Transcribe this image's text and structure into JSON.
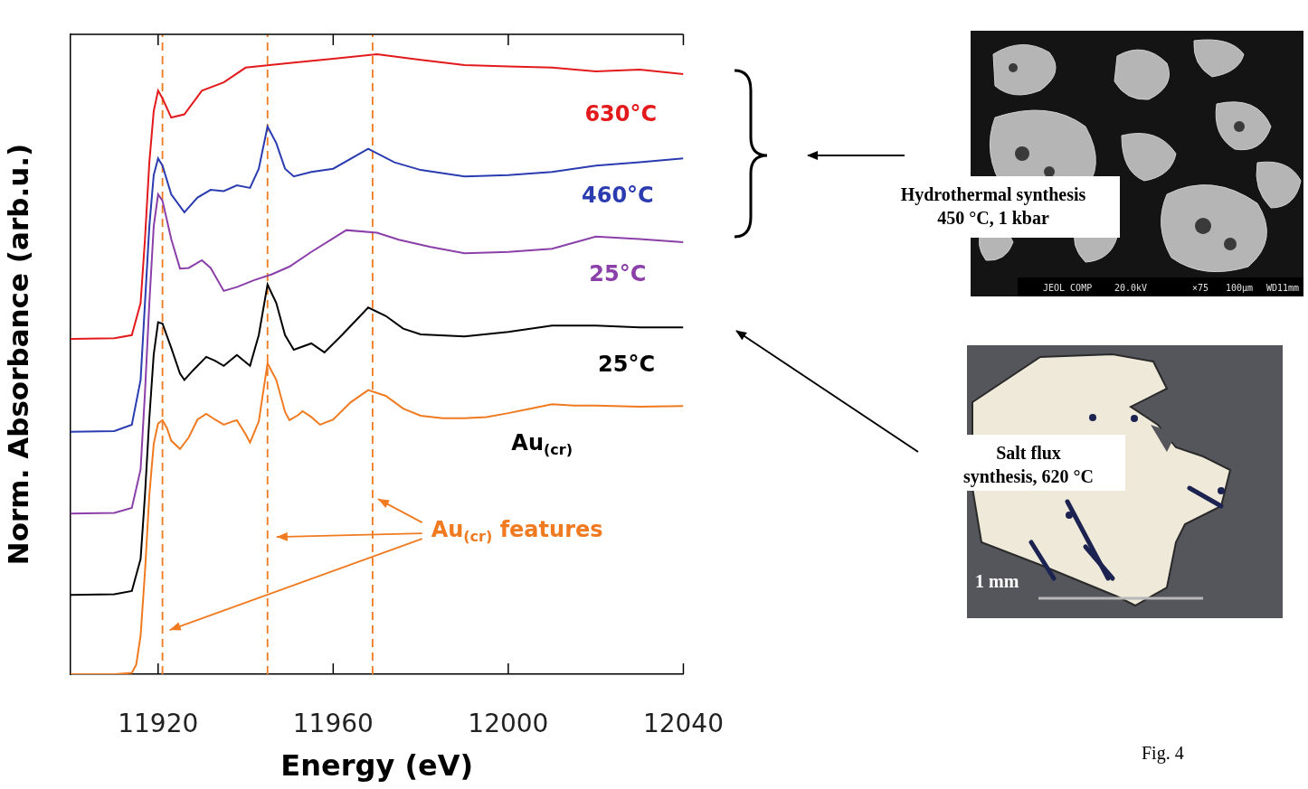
{
  "chart_data": {
    "type": "line",
    "x_label": "Energy (eV)",
    "y_label": "Norm. Absorbance (arb.u.)",
    "xlim": [
      11900,
      12040
    ],
    "xticks": [
      11920,
      11960,
      12000,
      12040
    ],
    "ylim": [
      0,
      10
    ],
    "tick_labels": "x",
    "grid": false,
    "reference_lines_x": [
      11921,
      11945,
      11969
    ],
    "reference_line_color": "#f07a20",
    "series": [
      {
        "color": "#f07a20",
        "x": [
          11900,
          11910,
          11914,
          11915,
          11916,
          11917,
          11918,
          11919,
          11920,
          11921,
          11922,
          11923,
          11925,
          11927,
          11929,
          11931,
          11933,
          11935,
          11937,
          11938,
          11940,
          11941,
          11943,
          11945,
          11947,
          11949,
          11950,
          11952,
          11953,
          11955,
          11957,
          11960,
          11964,
          11968,
          11972,
          11976,
          11980,
          11985,
          11990,
          11995,
          12000,
          12005,
          12010,
          12015,
          12020,
          12030,
          12040
        ],
        "values": [
          0,
          0,
          0.02,
          0.15,
          0.6,
          1.6,
          2.8,
          3.6,
          3.92,
          3.97,
          3.85,
          3.65,
          3.52,
          3.7,
          3.98,
          4.07,
          3.98,
          3.9,
          3.95,
          3.97,
          3.75,
          3.62,
          3.95,
          4.86,
          4.6,
          4.1,
          3.97,
          4.05,
          4.11,
          4.02,
          3.9,
          3.98,
          4.25,
          4.44,
          4.35,
          4.15,
          4.04,
          4.0,
          4.0,
          4.02,
          4.08,
          4.15,
          4.22,
          4.2,
          4.2,
          4.18,
          4.19
        ]
      },
      {
        "color": "#000000",
        "x": [
          11900,
          11910,
          11914,
          11916,
          11917,
          11918,
          11919,
          11920,
          11921,
          11923,
          11925,
          11926,
          11928,
          11931,
          11933,
          11935,
          11938,
          11941,
          11943,
          11945,
          11947,
          11949,
          11951,
          11955,
          11958,
          11962,
          11968,
          11972,
          11976,
          11980,
          11990,
          12000,
          12010,
          12020,
          12030,
          12040
        ],
        "values": [
          1.24,
          1.25,
          1.3,
          1.8,
          2.8,
          4.0,
          5.0,
          5.5,
          5.48,
          5.1,
          4.7,
          4.6,
          4.75,
          4.96,
          4.9,
          4.82,
          4.99,
          4.82,
          5.3,
          6.09,
          5.8,
          5.3,
          5.07,
          5.17,
          5.03,
          5.3,
          5.73,
          5.6,
          5.4,
          5.31,
          5.28,
          5.35,
          5.45,
          5.45,
          5.42,
          5.42
        ]
      },
      {
        "color": "#8b3fa8",
        "x": [
          11900,
          11910,
          11914,
          11916,
          11917,
          11918,
          11919,
          11920,
          11921,
          11923,
          11925,
          11927,
          11930,
          11932,
          11935,
          11938,
          11942,
          11946,
          11950,
          11955,
          11963,
          11970,
          11975,
          11982,
          11990,
          12000,
          12010,
          12020,
          12030,
          12040
        ],
        "values": [
          2.51,
          2.52,
          2.6,
          3.2,
          4.4,
          5.8,
          7.0,
          7.5,
          7.4,
          6.8,
          6.34,
          6.35,
          6.47,
          6.35,
          5.99,
          6.05,
          6.16,
          6.25,
          6.37,
          6.6,
          6.94,
          6.9,
          6.79,
          6.68,
          6.58,
          6.6,
          6.65,
          6.84,
          6.8,
          6.75
        ]
      },
      {
        "color": "#2a3cb0",
        "x": [
          11900,
          11910,
          11914,
          11916,
          11917,
          11918,
          11919,
          11920,
          11921,
          11923,
          11926,
          11929,
          11932,
          11935,
          11938,
          11941,
          11943,
          11945,
          11947,
          11949,
          11951,
          11955,
          11960,
          11968,
          11974,
          11980,
          11990,
          12000,
          12010,
          12020,
          12030,
          12040
        ],
        "values": [
          3.79,
          3.8,
          3.9,
          4.6,
          5.8,
          7.0,
          7.8,
          8.06,
          7.95,
          7.5,
          7.22,
          7.45,
          7.57,
          7.55,
          7.64,
          7.6,
          7.9,
          8.56,
          8.3,
          7.9,
          7.78,
          7.85,
          7.9,
          8.21,
          8.0,
          7.88,
          7.78,
          7.8,
          7.85,
          7.95,
          8.0,
          8.06
        ]
      },
      {
        "color": "#e31a1c",
        "x": [
          11900,
          11910,
          11914,
          11916,
          11917,
          11918,
          11919,
          11920,
          11921,
          11923,
          11926,
          11930,
          11935,
          11940,
          11950,
          11960,
          11970,
          11980,
          11990,
          12000,
          12010,
          12020,
          12030,
          12040
        ],
        "values": [
          5.24,
          5.25,
          5.3,
          5.8,
          6.8,
          8.0,
          8.8,
          9.12,
          9.0,
          8.7,
          8.75,
          9.12,
          9.25,
          9.48,
          9.55,
          9.62,
          9.69,
          9.6,
          9.52,
          9.5,
          9.48,
          9.42,
          9.45,
          9.38
        ]
      }
    ],
    "annotations": [
      {
        "text": "630°C",
        "x": 12025.7,
        "y": 8.73,
        "color": "#e31a1c"
      },
      {
        "text": "460°C",
        "x": 12025,
        "y": 7.46,
        "color": "#2a3cb0"
      },
      {
        "text": "25°C",
        "x": 12025,
        "y": 6.23,
        "color": "#8b3fa8"
      },
      {
        "text": "25°C",
        "x": 12027,
        "y": 4.82,
        "color": "#000000"
      },
      {
        "text": "Au(cr)",
        "x": 12007.7,
        "y": 3.59,
        "color": "#000000"
      },
      {
        "text": "Au(cr) features",
        "x": 12002,
        "y": 2.23,
        "color": "#f07a20"
      }
    ]
  },
  "panels": [
    {
      "caption": [
        "Hydrothermal synthesis",
        "450 °C, 1 kbar"
      ],
      "info_bar": [
        "JEOL COMP",
        "20.0kV",
        "×75",
        "100μm",
        "WD11mm"
      ]
    },
    {
      "caption": [
        "Salt flux",
        "synthesis, 620 °C"
      ],
      "scale_bar_text": [
        "1 mm"
      ]
    }
  ],
  "figure_label": "Fig. 4"
}
